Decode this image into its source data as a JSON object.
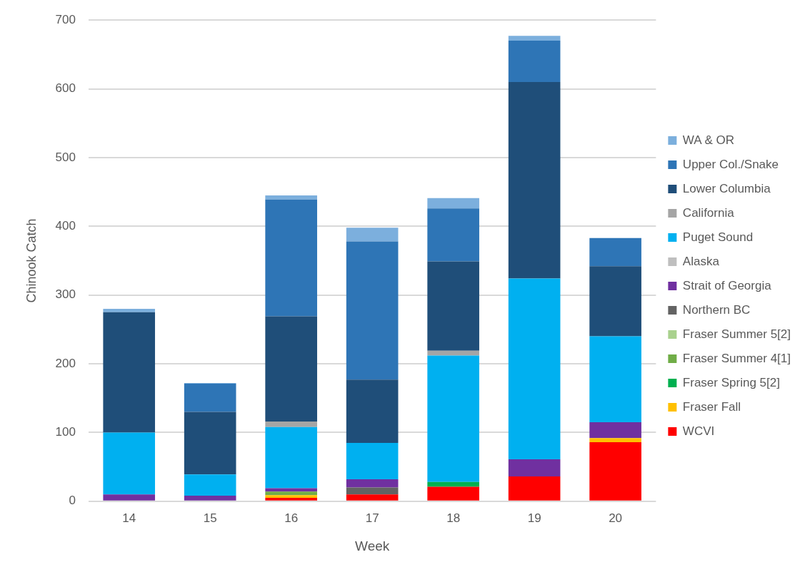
{
  "chart_data": {
    "type": "bar",
    "stacked": true,
    "xlabel": "Week",
    "ylabel": "Chinook Catch",
    "categories": [
      "14",
      "15",
      "16",
      "17",
      "18",
      "19",
      "20"
    ],
    "ylim": [
      0,
      700
    ],
    "yticks": [
      0,
      100,
      200,
      300,
      400,
      500,
      600,
      700
    ],
    "grid": "y",
    "legend": "right",
    "series": [
      {
        "name": "WCVI",
        "color": "#ff0000",
        "values": [
          0,
          0,
          5,
          10,
          21,
          36,
          86
        ]
      },
      {
        "name": "Fraser Fall",
        "color": "#ffc000",
        "values": [
          0,
          0,
          4,
          0,
          0,
          0,
          6
        ]
      },
      {
        "name": "Fraser Spring 5[2]",
        "color": "#00b050",
        "values": [
          0,
          0,
          0,
          0,
          7,
          0,
          0
        ]
      },
      {
        "name": "Fraser Summer 4[1]",
        "color": "#70ad47",
        "values": [
          0,
          0,
          5,
          0,
          0,
          0,
          0
        ]
      },
      {
        "name": "Fraser Summer 5[2]",
        "color": "#a9d18e",
        "values": [
          0,
          0,
          0,
          0,
          0,
          0,
          0
        ]
      },
      {
        "name": "Northern BC",
        "color": "#636363",
        "values": [
          0,
          0,
          0,
          10,
          0,
          0,
          0
        ]
      },
      {
        "name": "Strait of Georgia",
        "color": "#7030a0",
        "values": [
          10,
          8,
          5,
          12,
          0,
          25,
          23
        ]
      },
      {
        "name": "Alaska",
        "color": "#bfbfbf",
        "values": [
          0,
          0,
          0,
          0,
          0,
          0,
          0
        ]
      },
      {
        "name": "Puget Sound",
        "color": "#00b0f0",
        "values": [
          90,
          31,
          89,
          53,
          184,
          263,
          125
        ]
      },
      {
        "name": "California",
        "color": "#a5a5a5",
        "values": [
          0,
          0,
          8,
          0,
          7,
          0,
          0
        ]
      },
      {
        "name": "Lower Columbia",
        "color": "#1f4e79",
        "values": [
          175,
          91,
          153,
          92,
          130,
          286,
          102
        ]
      },
      {
        "name": "Upper Col./Snake",
        "color": "#2e75b6",
        "values": [
          0,
          41,
          170,
          201,
          77,
          60,
          41
        ]
      },
      {
        "name": "WA & OR",
        "color": "#7cafdd",
        "values": [
          5,
          1,
          6,
          20,
          15,
          7,
          0
        ]
      }
    ]
  }
}
